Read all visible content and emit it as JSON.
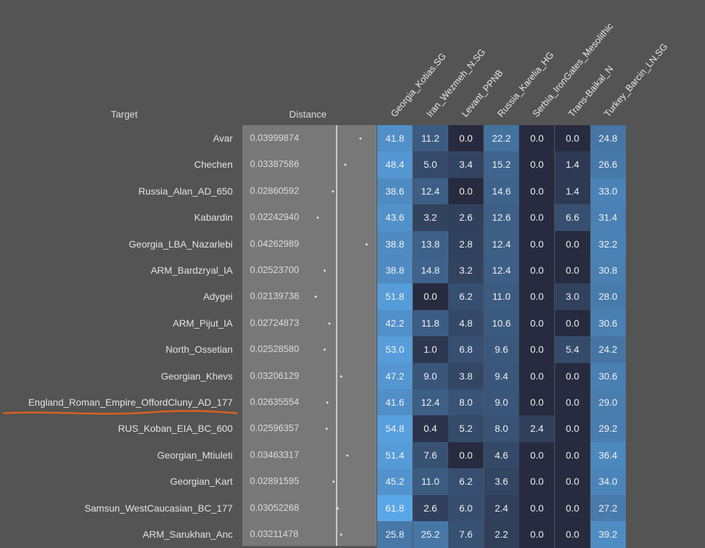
{
  "chart_data": {
    "type": "heatmap",
    "headers": {
      "target": "Target",
      "distance": "Distance"
    },
    "columns": [
      "Georgia_Kotias.SG",
      "Iran_Wezmeh_N.SG",
      "Levant_PPNB",
      "Russia_Karelia_HG",
      "Serbia_IronGates_Mesolithic",
      "Trans-Baikal_N",
      "Turkey_Barcin_LN.SG"
    ],
    "rows": [
      {
        "target": "Avar",
        "distance": "0.03999874",
        "values": [
          41.8,
          11.2,
          0.0,
          22.2,
          0.0,
          0.0,
          24.8
        ]
      },
      {
        "target": "Chechen",
        "distance": "0.03387586",
        "values": [
          48.4,
          5.0,
          3.4,
          15.2,
          0.0,
          1.4,
          26.6
        ]
      },
      {
        "target": "Russia_Alan_AD_650",
        "distance": "0.02860592",
        "values": [
          38.6,
          12.4,
          0.0,
          14.6,
          0.0,
          1.4,
          33.0
        ]
      },
      {
        "target": "Kabardin",
        "distance": "0.02242940",
        "values": [
          43.6,
          3.2,
          2.6,
          12.6,
          0.0,
          6.6,
          31.4
        ]
      },
      {
        "target": "Georgia_LBA_Nazarlebi",
        "distance": "0.04262989",
        "values": [
          38.8,
          13.8,
          2.8,
          12.4,
          0.0,
          0.0,
          32.2
        ]
      },
      {
        "target": "ARM_Bardzryal_IA",
        "distance": "0.02523700",
        "values": [
          38.8,
          14.8,
          3.2,
          12.4,
          0.0,
          0.0,
          30.8
        ]
      },
      {
        "target": "Adygei",
        "distance": "0.02139738",
        "values": [
          51.8,
          0.0,
          6.2,
          11.0,
          0.0,
          3.0,
          28.0
        ]
      },
      {
        "target": "ARM_Pijut_IA",
        "distance": "0.02724873",
        "values": [
          42.2,
          11.8,
          4.8,
          10.6,
          0.0,
          0.0,
          30.6
        ]
      },
      {
        "target": "North_Ossetian",
        "distance": "0.02528580",
        "values": [
          53.0,
          1.0,
          6.8,
          9.6,
          0.0,
          5.4,
          24.2
        ]
      },
      {
        "target": "Georgian_Khevs",
        "distance": "0.03206129",
        "values": [
          47.2,
          9.0,
          3.8,
          9.4,
          0.0,
          0.0,
          30.6
        ]
      },
      {
        "target": "England_Roman_Empire_OffordCluny_AD_177",
        "distance": "0.02635554",
        "values": [
          41.6,
          12.4,
          8.0,
          9.0,
          0.0,
          0.0,
          29.0
        ]
      },
      {
        "target": "RUS_Koban_EIA_BC_600",
        "distance": "0.02596357",
        "values": [
          54.8,
          0.4,
          5.2,
          8.0,
          2.4,
          0.0,
          29.2
        ]
      },
      {
        "target": "Georgian_Mtiuleti",
        "distance": "0.03463317",
        "values": [
          51.4,
          7.6,
          0.0,
          4.6,
          0.0,
          0.0,
          36.4
        ]
      },
      {
        "target": "Georgian_Kart",
        "distance": "0.02891595",
        "values": [
          45.2,
          11.0,
          6.2,
          3.6,
          0.0,
          0.0,
          34.0
        ]
      },
      {
        "target": "Samsun_WestCaucasian_BC_177",
        "distance": "0.03052268",
        "values": [
          61.8,
          2.6,
          6.0,
          2.4,
          0.0,
          0.0,
          27.2
        ]
      },
      {
        "target": "ARM_Sarukhan_Anc",
        "distance": "0.03211478",
        "values": [
          25.8,
          25.2,
          7.6,
          2.2,
          0.0,
          0.0,
          39.2
        ]
      }
    ],
    "highlighted_row": "England_Roman_Empire_OffordCluny_AD_177",
    "colors": {
      "low": "#282b3f",
      "high": "#5aa7e8",
      "annotation": "#e0621c"
    }
  }
}
